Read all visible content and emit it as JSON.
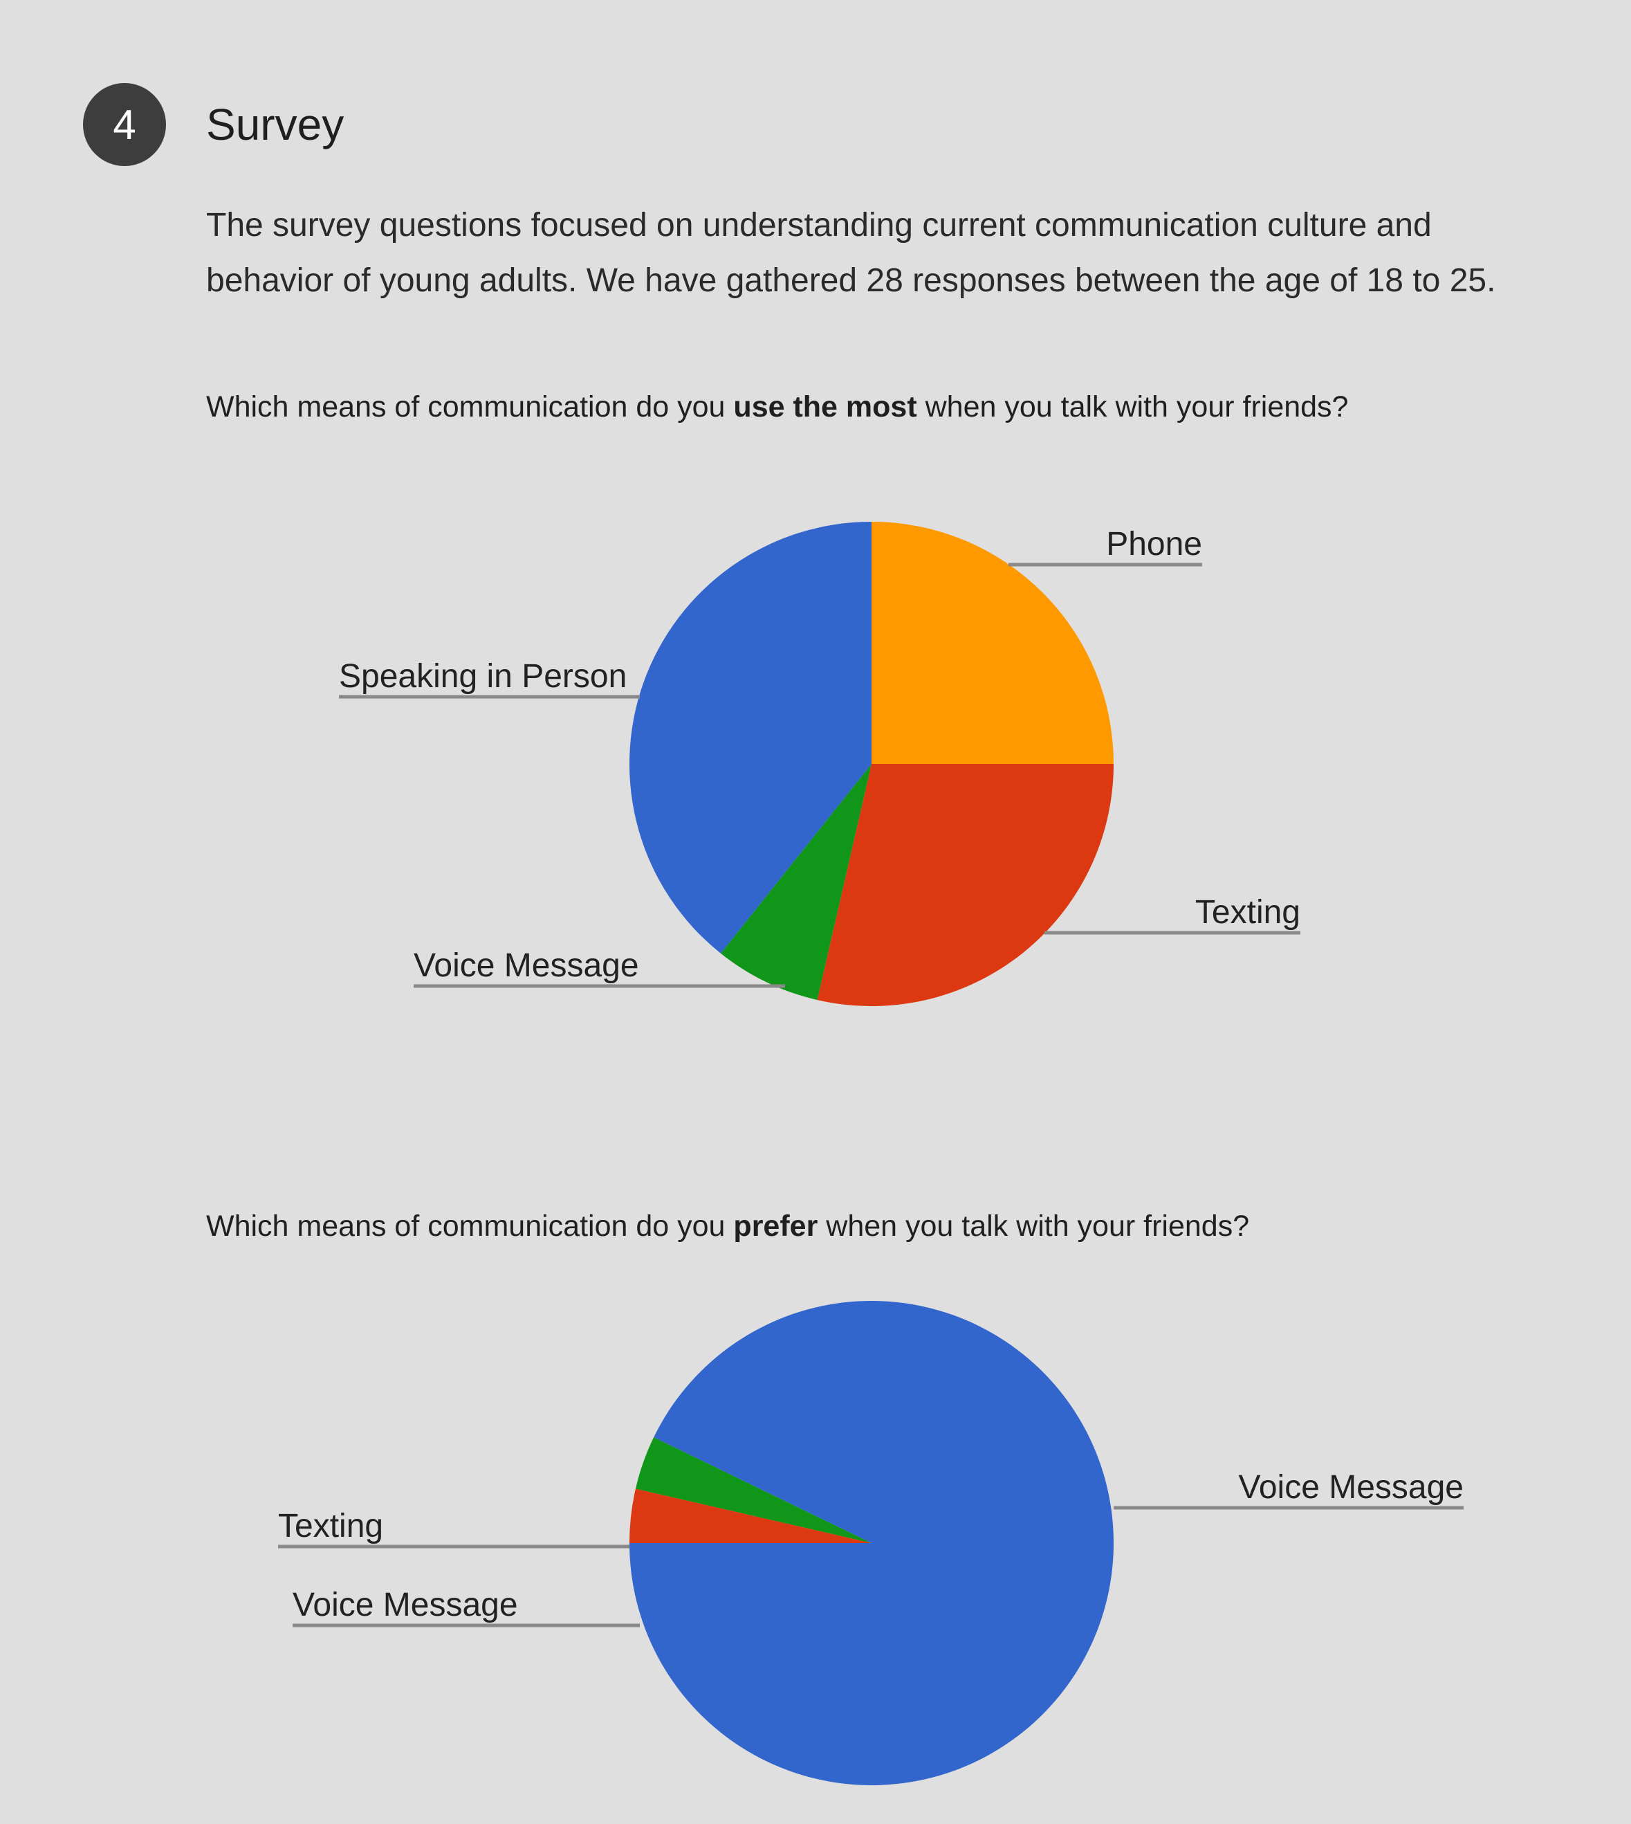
{
  "section": {
    "number": "4",
    "title": "Survey",
    "intro": "The survey questions focused on understanding current communication culture and behavior of young adults. We have gathered 28 responses between the age of 18 to 25."
  },
  "questions": [
    {
      "prefix": "Which means of communication do you ",
      "emphasis": "use the most",
      "suffix": " when you talk with your friends?"
    },
    {
      "prefix": "Which means of communication do you ",
      "emphasis": "prefer",
      "suffix": " when you talk with your friends?"
    }
  ],
  "chart_data": [
    {
      "type": "pie",
      "title": "",
      "slices": [
        {
          "label": "Phone",
          "value": 25.0,
          "color": "#ff9900"
        },
        {
          "label": "Texting",
          "value": 28.6,
          "color": "#dc3912"
        },
        {
          "label": "Voice Message",
          "value": 7.1,
          "color": "#109618"
        },
        {
          "label": "Speaking in Person",
          "value": 39.3,
          "color": "#3366cc"
        }
      ],
      "legend": "none"
    },
    {
      "type": "pie",
      "title": "",
      "slices": [
        {
          "label": "Voice Message",
          "value": 92.9,
          "color": "#3366cc"
        },
        {
          "label": "Voice Message",
          "value": 3.6,
          "color": "#109618"
        },
        {
          "label": "Texting",
          "value": 3.6,
          "color": "#dc3912"
        }
      ],
      "legend": "none"
    }
  ]
}
